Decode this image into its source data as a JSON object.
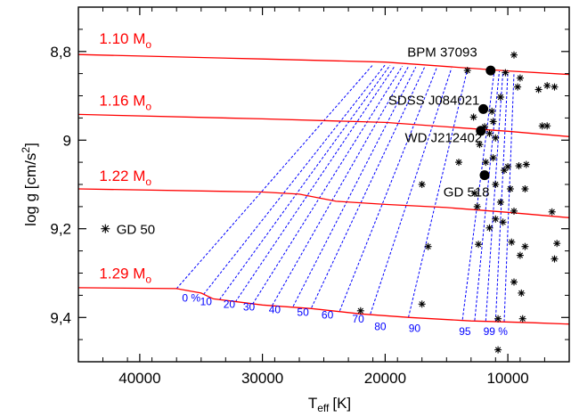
{
  "chart_data": {
    "type": "line",
    "xlabel_base": "T",
    "xlabel_sub": "eff",
    "xlabel_unit": "[K]",
    "ylabel_main": "log g [cm/s",
    "ylabel_sup": "2",
    "ylabel_end": "]",
    "xlim": [
      45000,
      5000
    ],
    "ylim": [
      8.7,
      9.5
    ],
    "y_reversed": true,
    "x_ticks": [
      {
        "value": 40000,
        "label": "40000"
      },
      {
        "value": 30000,
        "label": "30000"
      },
      {
        "value": 20000,
        "label": "20000"
      },
      {
        "value": 10000,
        "label": "10000"
      }
    ],
    "y_ticks": [
      {
        "value": 8.8,
        "label": "8,8"
      },
      {
        "value": 9.0,
        "label": "9"
      },
      {
        "value": 9.2,
        "label": "9,2"
      },
      {
        "value": 9.4,
        "label": "9,4"
      }
    ],
    "mass_tracks": [
      {
        "label_value": "1.10 M",
        "label_sub": "o",
        "label_at": [
          43300,
          8.782
        ],
        "points": [
          [
            45000,
            8.807
          ],
          [
            30000,
            8.817
          ],
          [
            20000,
            8.824
          ],
          [
            10000,
            8.844
          ],
          [
            5000,
            8.852
          ]
        ]
      },
      {
        "label_value": "1.16 M",
        "label_sub": "o",
        "label_at": [
          43300,
          8.922
        ],
        "points": [
          [
            45000,
            8.942
          ],
          [
            30000,
            8.952
          ],
          [
            20000,
            8.96
          ],
          [
            10000,
            8.98
          ],
          [
            5000,
            8.992
          ]
        ]
      },
      {
        "label_value": "1.22 M",
        "label_sub": "o",
        "label_at": [
          43300,
          9.092
        ],
        "points": [
          [
            45000,
            9.11
          ],
          [
            30000,
            9.117
          ],
          [
            27000,
            9.122
          ],
          [
            24000,
            9.138
          ],
          [
            20000,
            9.145
          ],
          [
            15000,
            9.152
          ],
          [
            10000,
            9.163
          ],
          [
            5000,
            9.175
          ]
        ]
      },
      {
        "label_value": "1.29 M",
        "label_sub": "o",
        "label_at": [
          43300,
          9.312
        ],
        "points": [
          [
            45000,
            9.333
          ],
          [
            37000,
            9.335
          ],
          [
            35000,
            9.345
          ],
          [
            34000,
            9.358
          ],
          [
            32000,
            9.365
          ],
          [
            30000,
            9.372
          ],
          [
            26000,
            9.38
          ],
          [
            22000,
            9.392
          ],
          [
            18000,
            9.4
          ],
          [
            13000,
            9.408
          ],
          [
            8000,
            9.412
          ],
          [
            5000,
            9.415
          ]
        ]
      }
    ],
    "crystallization_lines": [
      {
        "label": "0 %",
        "label_at": [
          35800,
          9.364
        ],
        "points": [
          [
            37000,
            9.335
          ],
          [
            21000,
            8.83
          ]
        ]
      },
      {
        "label": "10",
        "label_at": [
          34600,
          9.372
        ],
        "points": [
          [
            34800,
            9.348
          ],
          [
            20000,
            8.83
          ]
        ]
      },
      {
        "label": "20",
        "label_at": [
          32700,
          9.378
        ],
        "points": [
          [
            33500,
            9.36
          ],
          [
            19600,
            8.831
          ]
        ]
      },
      {
        "label": "30",
        "label_at": [
          31100,
          9.384
        ],
        "points": [
          [
            32200,
            9.365
          ],
          [
            19200,
            8.832
          ]
        ]
      },
      {
        "label": "40",
        "label_at": [
          29000,
          9.39
        ],
        "points": [
          [
            30800,
            9.37
          ],
          [
            18600,
            8.833
          ]
        ]
      },
      {
        "label": "50",
        "label_at": [
          26700,
          9.396
        ],
        "points": [
          [
            29200,
            9.373
          ],
          [
            18100,
            8.834
          ]
        ]
      },
      {
        "label": "60",
        "label_at": [
          24700,
          9.403
        ],
        "points": [
          [
            27500,
            9.375
          ],
          [
            17500,
            8.835
          ]
        ]
      },
      {
        "label": "70",
        "label_at": [
          22200,
          9.412
        ],
        "points": [
          [
            26000,
            9.378
          ],
          [
            16800,
            8.836
          ]
        ]
      },
      {
        "label": "80",
        "label_at": [
          20400,
          9.429
        ],
        "points": [
          [
            23700,
            9.385
          ],
          [
            15800,
            8.837
          ]
        ]
      },
      {
        "label": "90",
        "label_at": [
          17600,
          9.433
        ],
        "points": [
          [
            21200,
            9.392
          ],
          [
            14600,
            8.838
          ]
        ]
      },
      {
        "label": "95",
        "label_at": [
          13500,
          9.44
        ],
        "points": [
          [
            18100,
            9.4
          ],
          [
            13300,
            8.84
          ]
        ]
      },
      {
        "label": "99 %",
        "label_at": [
          11000,
          9.44
        ],
        "points": [
          [
            13700,
            9.405
          ],
          [
            11100,
            8.843
          ]
        ]
      },
      {
        "label": "",
        "label_at": null,
        "points": [
          [
            12700,
            9.407
          ],
          [
            10700,
            8.845
          ]
        ]
      },
      {
        "label": "",
        "label_at": null,
        "points": [
          [
            11800,
            9.408
          ],
          [
            10400,
            8.846
          ]
        ]
      },
      {
        "label": "",
        "label_at": null,
        "points": [
          [
            11000,
            9.409
          ],
          [
            10000,
            8.848
          ]
        ]
      },
      {
        "label": "",
        "label_at": null,
        "points": [
          [
            10300,
            9.41
          ],
          [
            9500,
            8.849
          ]
        ]
      }
    ],
    "stars_named": [
      {
        "label": "BPM 37093",
        "x": 11400,
        "y": 8.843,
        "label_at": [
          12500,
          8.812
        ],
        "anchor": "end"
      },
      {
        "label": "SDSS J084021",
        "x": 12000,
        "y": 8.93,
        "label_at": [
          12300,
          8.92
        ],
        "anchor": "end"
      },
      {
        "label": "WD J212402",
        "x": 12200,
        "y": 8.979,
        "label_at": [
          12100,
          9.005
        ],
        "anchor": "end"
      },
      {
        "label": "GD 518",
        "x": 11900,
        "y": 9.079,
        "label_at": [
          11500,
          9.127
        ],
        "anchor": "end"
      }
    ],
    "gd50": {
      "label": "GD 50",
      "x": 42800,
      "y": 9.2,
      "label_at": [
        41900,
        9.212
      ]
    },
    "other_stars": [
      [
        13300,
        8.843
      ],
      [
        10200,
        8.848
      ],
      [
        9500,
        8.808
      ],
      [
        9000,
        8.86
      ],
      [
        10600,
        8.903
      ],
      [
        9200,
        8.88
      ],
      [
        7500,
        8.886
      ],
      [
        6800,
        8.877
      ],
      [
        6200,
        8.88
      ],
      [
        11300,
        8.935
      ],
      [
        12800,
        8.948
      ],
      [
        11900,
        8.97
      ],
      [
        11000,
        8.995
      ],
      [
        11200,
        8.958
      ],
      [
        11500,
        8.985
      ],
      [
        6800,
        8.968
      ],
      [
        7200,
        8.968
      ],
      [
        14000,
        9.05
      ],
      [
        17000,
        9.1
      ],
      [
        12300,
        9.01
      ],
      [
        11800,
        9.05
      ],
      [
        11200,
        9.04
      ],
      [
        10300,
        9.068
      ],
      [
        10000,
        9.06
      ],
      [
        9100,
        9.058
      ],
      [
        8500,
        9.055
      ],
      [
        11000,
        9.1
      ],
      [
        12700,
        9.12
      ],
      [
        9800,
        9.11
      ],
      [
        8600,
        9.11
      ],
      [
        10600,
        9.14
      ],
      [
        12500,
        9.15
      ],
      [
        10400,
        9.185
      ],
      [
        11000,
        9.178
      ],
      [
        9500,
        9.16
      ],
      [
        6400,
        9.162
      ],
      [
        16500,
        9.24
      ],
      [
        12400,
        9.235
      ],
      [
        11500,
        9.198
      ],
      [
        9700,
        9.23
      ],
      [
        8600,
        9.24
      ],
      [
        9000,
        9.26
      ],
      [
        6000,
        9.233
      ],
      [
        6200,
        9.268
      ],
      [
        9500,
        9.32
      ],
      [
        8900,
        9.345
      ],
      [
        22000,
        9.385
      ],
      [
        17000,
        9.37
      ],
      [
        10800,
        9.403
      ],
      [
        8800,
        9.403
      ],
      [
        10800,
        9.473
      ]
    ],
    "colors": {
      "mass_tracks": "#ff0000",
      "crystallization": "#0000ff",
      "stars": "#000000"
    }
  }
}
